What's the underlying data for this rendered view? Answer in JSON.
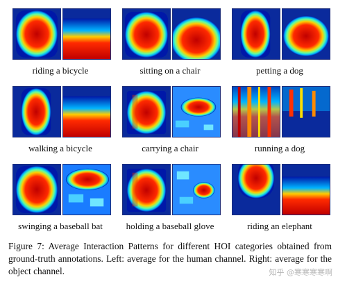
{
  "figure": {
    "panels": [
      {
        "label": "riding a bicycle",
        "human": "tall-blob",
        "object": "lower-block"
      },
      {
        "label": "sitting on a chair",
        "human": "wide-blob",
        "object": "lower-round"
      },
      {
        "label": "petting a dog",
        "human": "narrow-tall",
        "object": "center-round"
      },
      {
        "label": "walking a bicycle",
        "human": "narrow-tall",
        "object": "lower-block"
      },
      {
        "label": "carrying a chair",
        "human": "blocky",
        "object": "noisy-center"
      },
      {
        "label": "running a dog",
        "human": "streaks",
        "object": "streaks-blue"
      },
      {
        "label": "swinging a baseball bat",
        "human": "tall-blob",
        "object": "noisy-top"
      },
      {
        "label": "holding a baseball glove",
        "human": "blocky",
        "object": "noisy-small"
      },
      {
        "label": "riding an elephant",
        "human": "top-half",
        "object": "lower-wide"
      }
    ]
  },
  "caption": {
    "figure_label": "Figure 7:",
    "text": "Average Interaction Patterns for different HOI categories obtained from ground-truth annotations. Left: average for the human channel. Right: average for the object channel."
  },
  "watermark": "知乎 @寒寒寒寒啊"
}
